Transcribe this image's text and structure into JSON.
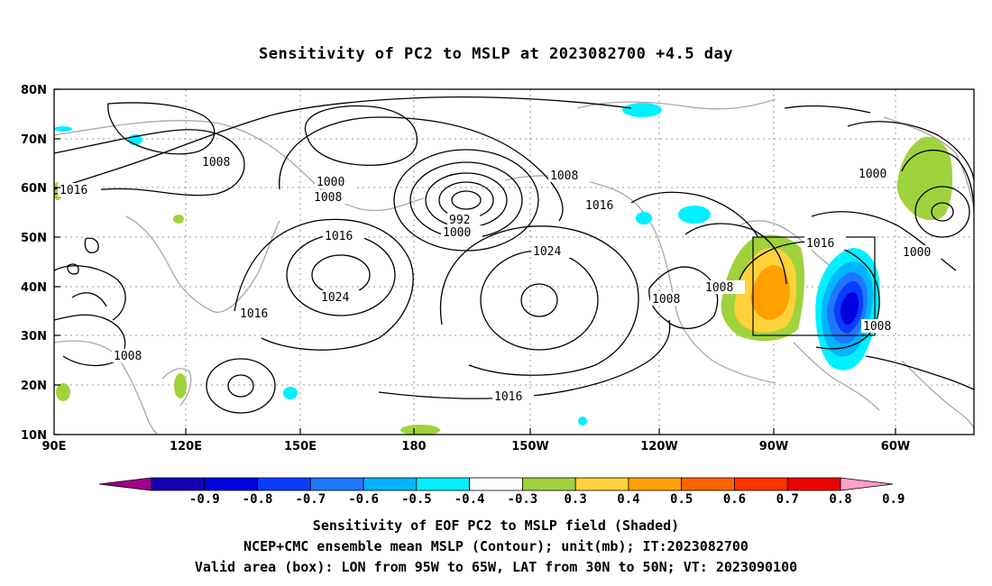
{
  "title": "Sensitivity of PC2 to MSLP at 2023082700 +4.5 day",
  "map": {
    "lon_range": [
      "90E",
      "30W"
    ],
    "lat_range": [
      "10N",
      "80N"
    ],
    "lat_labels": [
      "80N",
      "70N",
      "60N",
      "50N",
      "40N",
      "30N",
      "20N",
      "10N"
    ],
    "lon_labels": [
      "90E",
      "120E",
      "150E",
      "180",
      "150W",
      "120W",
      "90W",
      "60W"
    ],
    "contour_labels": [
      {
        "id": "c1",
        "text": "1016"
      },
      {
        "id": "c2",
        "text": "1008"
      },
      {
        "id": "c3",
        "text": "1000"
      },
      {
        "id": "c4",
        "text": "1008"
      },
      {
        "id": "c5",
        "text": "992"
      },
      {
        "id": "c6",
        "text": "1000"
      },
      {
        "id": "c7",
        "text": "1008"
      },
      {
        "id": "c8",
        "text": "1016"
      },
      {
        "id": "c9",
        "text": "1016"
      },
      {
        "id": "c10",
        "text": "1024"
      },
      {
        "id": "c11",
        "text": "1024"
      },
      {
        "id": "c12",
        "text": "1016"
      },
      {
        "id": "c13",
        "text": "1008"
      },
      {
        "id": "c14",
        "text": "1008"
      },
      {
        "id": "c15",
        "text": "1008"
      },
      {
        "id": "c16",
        "text": "1016"
      },
      {
        "id": "c17",
        "text": "1016"
      },
      {
        "id": "c18",
        "text": "1000"
      },
      {
        "id": "c19",
        "text": "1000"
      },
      {
        "id": "c20",
        "text": "1008"
      }
    ],
    "valid_box": {
      "lon": "95W to 65W",
      "lat": "30N to 50N"
    }
  },
  "colorbar": {
    "labels": [
      "-0.9",
      "-0.8",
      "-0.7",
      "-0.6",
      "-0.5",
      "-0.4",
      "-0.3",
      "0.3",
      "0.4",
      "0.5",
      "0.6",
      "0.7",
      "0.8",
      "0.9"
    ],
    "colors": [
      "#a0008c",
      "#1400b4",
      "#0000dc",
      "#0a3cff",
      "#1e78ff",
      "#00b4ff",
      "#00f0ff",
      "#ffffff",
      "#a0d23c",
      "#ffd23c",
      "#ffa000",
      "#ff6400",
      "#ff3200",
      "#f00000",
      "#ffa0c8"
    ]
  },
  "captions": {
    "line1": "Sensitivity of EOF PC2 to MSLP field (Shaded)",
    "line2": "NCEP+CMC ensemble mean MSLP (Contour); unit(mb); IT:2023082700",
    "line3": "Valid area (box): LON from 95W to 65W, LAT from 30N to 50N; VT: 2023090100"
  }
}
